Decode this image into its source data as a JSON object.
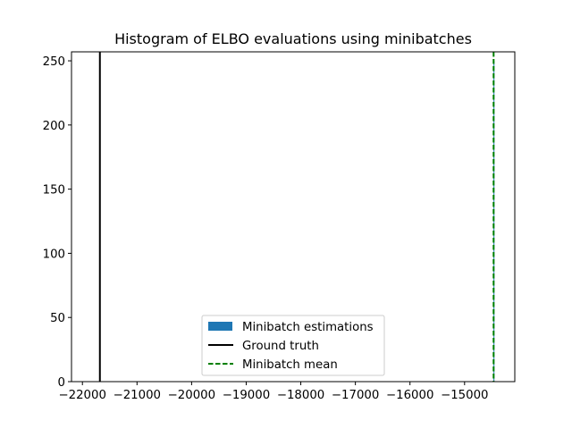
{
  "chart_data": {
    "type": "histogram",
    "title": "Histogram of ELBO evaluations using minibatches",
    "xlabel": "",
    "ylabel": "",
    "xlim": [
      -22200,
      -14080
    ],
    "ylim": [
      0,
      257
    ],
    "xticks": [
      -22000,
      -21000,
      -20000,
      -19000,
      -18000,
      -17000,
      -16000,
      -15000
    ],
    "xtick_labels": [
      "−22000",
      "−21000",
      "−20000",
      "−19000",
      "−18000",
      "−17000",
      "−16000",
      "−15000"
    ],
    "yticks": [
      0,
      50,
      100,
      150,
      200,
      250
    ],
    "ytick_labels": [
      "0",
      "50",
      "100",
      "150",
      "200",
      "250"
    ],
    "grid": false,
    "legend_position": "lower center",
    "series": [
      {
        "name": "Minibatch estimations",
        "kind": "histogram",
        "color": "#1f77b4",
        "bins": [
          {
            "x0": -14470,
            "x1": -14460,
            "count": 250
          }
        ]
      },
      {
        "name": "Ground truth",
        "kind": "vline",
        "x": -21680,
        "color": "#000000",
        "style": "solid"
      },
      {
        "name": "Minibatch mean",
        "kind": "vline",
        "x": -14468,
        "color": "#008000",
        "style": "dashed"
      }
    ]
  }
}
